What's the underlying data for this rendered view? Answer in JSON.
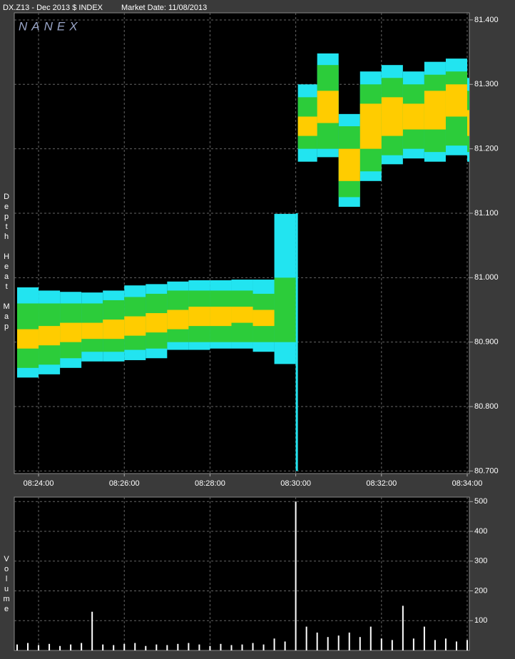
{
  "chart_data": [
    {
      "type": "depth-band",
      "title": "DX.Z13 - Dec 2013 $ INDEX",
      "subtitle": "Market Date: 11/08/2013",
      "annotation": "NANEX",
      "y_label": "Depth Heat Map",
      "x": [
        "08:23:30",
        "08:24:00",
        "08:24:30",
        "08:25:00",
        "08:25:30",
        "08:26:00",
        "08:26:30",
        "08:27:00",
        "08:27:30",
        "08:28:00",
        "08:28:30",
        "08:29:00",
        "08:29:30",
        "08:30:00",
        "08:30:03",
        "08:30:30",
        "08:31:00",
        "08:31:30",
        "08:32:00",
        "08:32:30",
        "08:33:00",
        "08:33:30",
        "08:34:00"
      ],
      "series": [
        {
          "color": "#22e4f0",
          "low": [
            80.845,
            80.85,
            80.86,
            80.87,
            80.87,
            80.872,
            80.875,
            80.888,
            80.888,
            80.89,
            80.89,
            80.885,
            80.866,
            80.7,
            81.18,
            81.187,
            81.11,
            81.15,
            81.176,
            81.185,
            81.18,
            81.19,
            81.18
          ],
          "high": [
            80.985,
            80.98,
            80.978,
            80.977,
            80.98,
            80.988,
            80.99,
            80.994,
            80.996,
            80.996,
            80.997,
            80.997,
            81.099,
            81.1,
            81.3,
            81.348,
            81.254,
            81.32,
            81.33,
            81.32,
            81.335,
            81.34,
            81.31
          ]
        },
        {
          "color": "#2ccc3a",
          "low": [
            80.86,
            80.865,
            80.875,
            80.885,
            80.885,
            80.888,
            80.89,
            80.9,
            80.9,
            80.9,
            80.9,
            80.9,
            80.9,
            null,
            81.2,
            81.2,
            81.125,
            81.165,
            81.19,
            81.2,
            81.195,
            81.205,
            81.195
          ],
          "high": [
            80.96,
            80.96,
            80.96,
            80.96,
            80.965,
            80.97,
            80.975,
            80.98,
            80.98,
            80.98,
            80.98,
            80.975,
            81.0,
            null,
            81.28,
            81.33,
            81.235,
            81.3,
            81.31,
            81.3,
            81.315,
            81.32,
            81.29
          ]
        },
        {
          "color": "#ffcc00",
          "low": [
            80.89,
            80.895,
            80.9,
            80.905,
            80.905,
            80.91,
            80.915,
            80.92,
            80.925,
            80.925,
            80.93,
            80.925,
            null,
            null,
            81.22,
            81.24,
            81.15,
            81.2,
            81.22,
            81.23,
            81.23,
            81.25,
            81.22
          ],
          "high": [
            80.92,
            80.925,
            80.93,
            80.93,
            80.935,
            80.94,
            80.945,
            80.95,
            80.955,
            80.955,
            80.955,
            80.95,
            null,
            null,
            81.25,
            81.29,
            81.2,
            81.27,
            81.28,
            81.27,
            81.29,
            81.3,
            81.26
          ]
        }
      ],
      "xlim": [
        "08:23:26",
        "08:34:03"
      ],
      "xticks": [
        "08:24:00",
        "08:26:00",
        "08:28:00",
        "08:30:00",
        "08:32:00",
        "08:34:00"
      ],
      "ylim": [
        80.696,
        81.411
      ],
      "yticks": [
        {
          "value": 80.7,
          "label": "80.700"
        },
        {
          "value": 80.8,
          "label": "80.800"
        },
        {
          "value": 80.9,
          "label": "80.900"
        },
        {
          "value": 81.0,
          "label": "81.000"
        },
        {
          "value": 81.1,
          "label": "81.100"
        },
        {
          "value": 81.2,
          "label": "81.200"
        },
        {
          "value": 81.3,
          "label": "81.300"
        },
        {
          "value": 81.4,
          "label": "81.400"
        }
      ],
      "grid": true
    },
    {
      "type": "bar",
      "y_label": "Volume",
      "color": "#ffffff",
      "x": [
        "08:23:30",
        "08:23:45",
        "08:24:00",
        "08:24:15",
        "08:24:30",
        "08:24:45",
        "08:25:00",
        "08:25:15",
        "08:25:30",
        "08:25:45",
        "08:26:00",
        "08:26:15",
        "08:26:30",
        "08:26:45",
        "08:27:00",
        "08:27:15",
        "08:27:30",
        "08:27:45",
        "08:28:00",
        "08:28:15",
        "08:28:30",
        "08:28:45",
        "08:29:00",
        "08:29:15",
        "08:29:30",
        "08:29:45",
        "08:30:00",
        "08:30:15",
        "08:30:30",
        "08:30:45",
        "08:31:00",
        "08:31:15",
        "08:31:30",
        "08:31:45",
        "08:32:00",
        "08:32:15",
        "08:32:30",
        "08:32:45",
        "08:33:00",
        "08:33:15",
        "08:33:30",
        "08:33:45",
        "08:34:00"
      ],
      "values": [
        20,
        25,
        18,
        22,
        15,
        20,
        25,
        130,
        20,
        18,
        22,
        25,
        15,
        20,
        18,
        22,
        25,
        20,
        15,
        22,
        18,
        20,
        25,
        20,
        40,
        30,
        500,
        80,
        60,
        45,
        50,
        60,
        45,
        80,
        40,
        35,
        150,
        40,
        80,
        35,
        40,
        30,
        35
      ],
      "ylim": [
        0,
        515
      ],
      "yticks": [
        100,
        200,
        300,
        400,
        500
      ],
      "grid": true
    }
  ]
}
